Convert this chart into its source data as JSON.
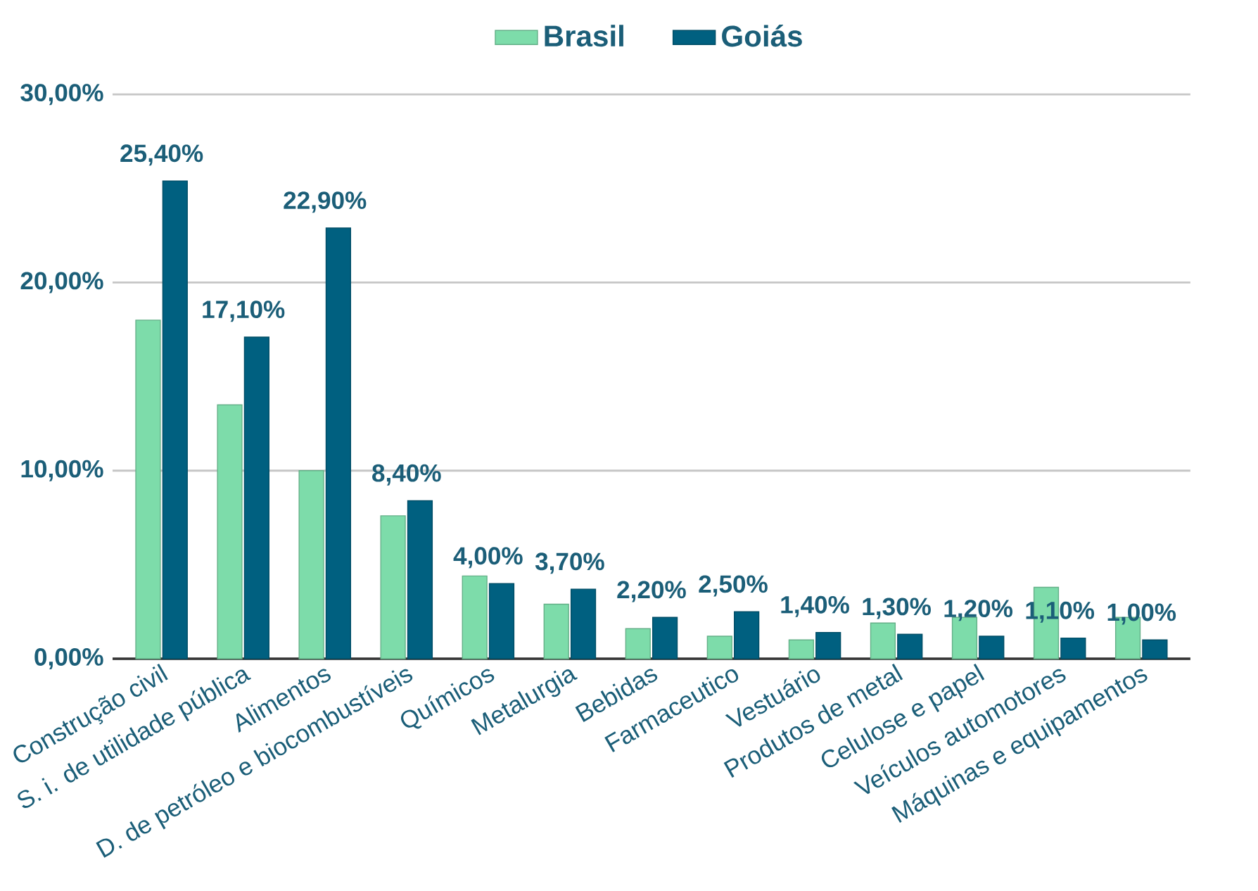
{
  "chart_data": {
    "type": "bar",
    "categories": [
      "Construção civil",
      "S. i. de utilidade pública",
      "Alimentos",
      "D. de petróleo e biocombustíveis",
      "Químicos",
      "Metalurgia",
      "Bebidas",
      "Farmaceutico",
      "Vestuário",
      "Produtos de metal",
      "Celulose e papel",
      "Veículos automotores",
      "Máquinas e equipamentos"
    ],
    "series": [
      {
        "name": "Brasil",
        "color": "#7ddcaa",
        "values": [
          18.0,
          13.5,
          10.0,
          7.6,
          4.4,
          2.9,
          1.6,
          1.2,
          1.0,
          1.9,
          2.2,
          3.8,
          2.2
        ]
      },
      {
        "name": "Goiás",
        "color": "#006080",
        "values": [
          25.4,
          17.1,
          22.9,
          8.4,
          4.0,
          3.7,
          2.2,
          2.5,
          1.4,
          1.3,
          1.2,
          1.1,
          1.0
        ],
        "value_labels": [
          "25,40%",
          "17,10%",
          "22,90%",
          "8,40%",
          "4,00%",
          "3,70%",
          "2,20%",
          "2,50%",
          "1,40%",
          "1,30%",
          "1,20%",
          "1,10%",
          "1,00%"
        ]
      }
    ],
    "ylim": [
      0,
      30
    ],
    "yticks": [
      {
        "value": 0,
        "label": "0,00%"
      },
      {
        "value": 10,
        "label": "10,00%"
      },
      {
        "value": 20,
        "label": "20,00%"
      },
      {
        "value": 30,
        "label": "30,00%"
      }
    ],
    "grid": "y",
    "legend": "top"
  }
}
